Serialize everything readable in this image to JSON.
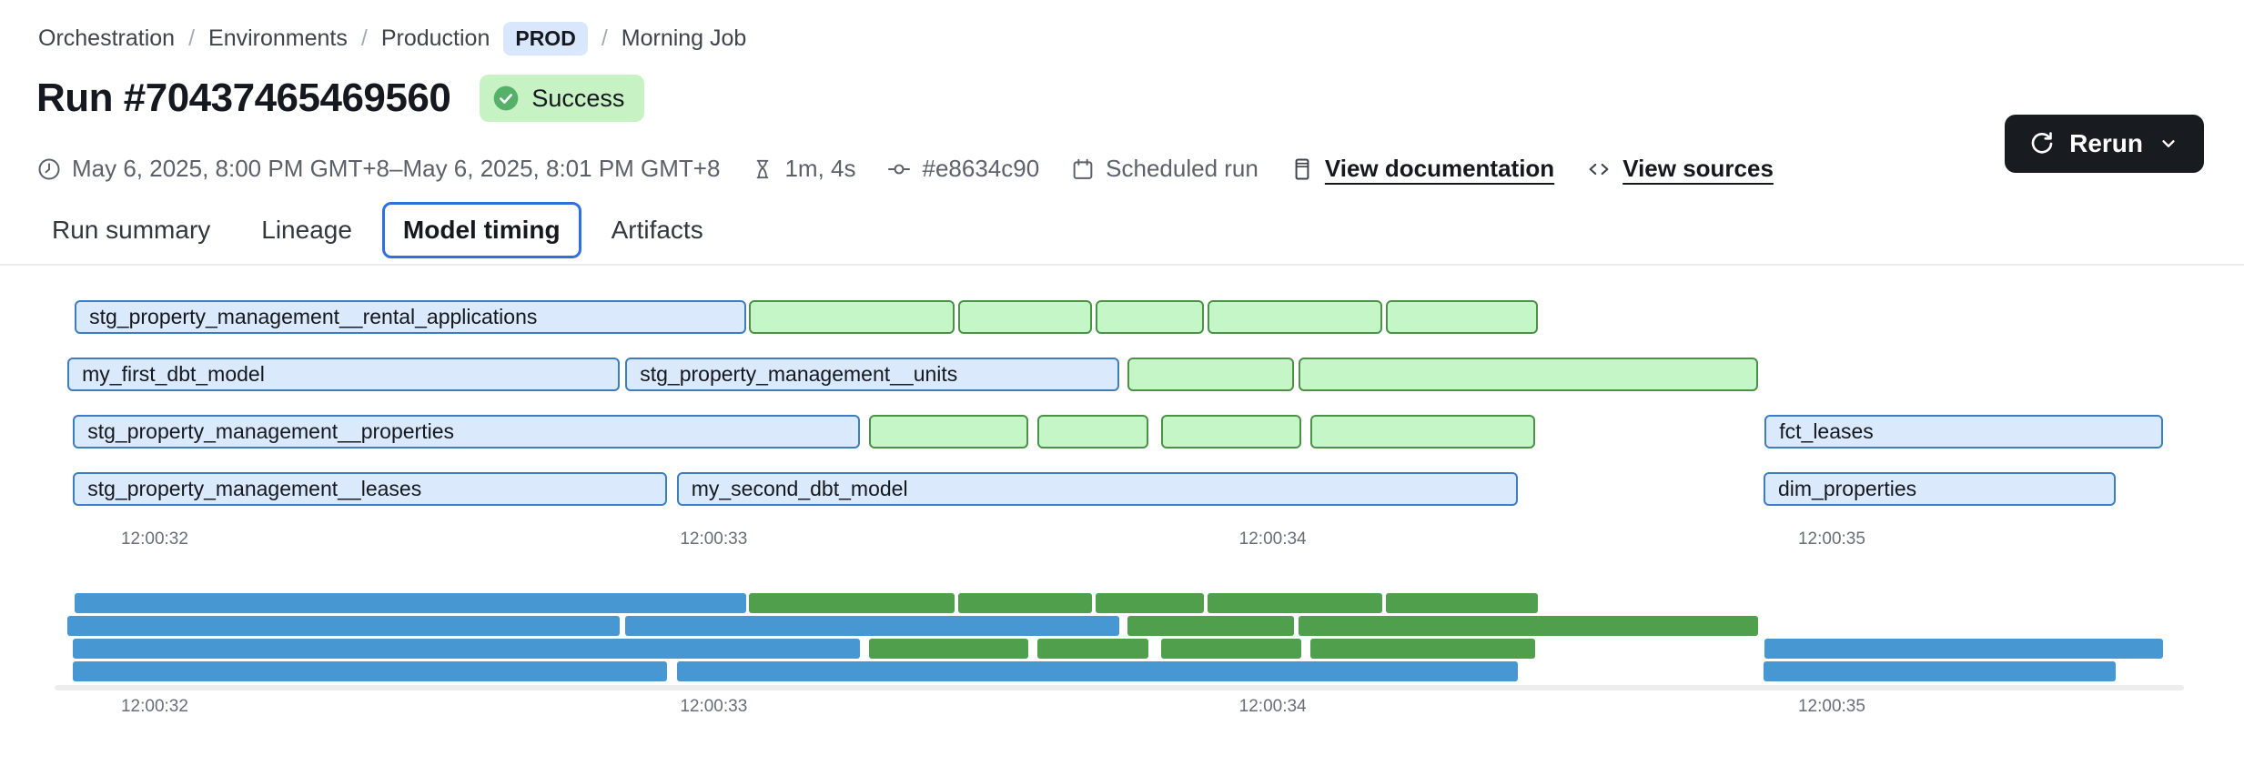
{
  "breadcrumb": {
    "items": [
      "Orchestration",
      "Environments",
      "Production",
      "Morning Job"
    ],
    "env_badge": "PROD"
  },
  "header": {
    "title": "Run #70437465469560",
    "status_badge": "Success",
    "rerun_label": "Rerun"
  },
  "meta": {
    "time_range": "May 6, 2025, 8:00 PM GMT+8–May 6, 2025, 8:01 PM GMT+8",
    "duration": "1m, 4s",
    "commit": "#e8634c90",
    "trigger": "Scheduled run",
    "docs_link": "View documentation",
    "sources_link": "View sources"
  },
  "tabs": [
    {
      "label": "Run summary",
      "active": false
    },
    {
      "label": "Lineage",
      "active": false
    },
    {
      "label": "Model timing",
      "active": true
    },
    {
      "label": "Artifacts",
      "active": false
    }
  ],
  "colors": {
    "prod_badge_bg": "#d9e7fd",
    "success_bg": "#c7f2c3",
    "check_circle": "#55b169",
    "rerun_bg": "#181b20",
    "tab_active_border": "#2f6fde",
    "bar_blue_fill": "#daeafc",
    "bar_blue_border": "#3d7dc1",
    "bar_green_fill": "#c5f6c8",
    "bar_green_border": "#4b9247",
    "mini_blue": "#4697d2",
    "mini_green": "#4f9f4c"
  },
  "chart_data": {
    "type": "gantt",
    "title": "Model timing",
    "legend": "none",
    "x_axis": {
      "min": 31.821,
      "max": 35.63,
      "unit": "seconds after 12:00:00",
      "ticks": [
        {
          "t": 32,
          "label": "12:00:32"
        },
        {
          "t": 33,
          "label": "12:00:33"
        },
        {
          "t": 34,
          "label": "12:00:34"
        },
        {
          "t": 35,
          "label": "12:00:35"
        }
      ]
    },
    "rows": [
      {
        "segments": [
          {
            "label": "stg_property_management__rental_applications",
            "color": "blue",
            "start": 31.857,
            "end": 33.058
          },
          {
            "color": "green",
            "start": 33.063,
            "end": 33.431
          },
          {
            "color": "green",
            "start": 33.437,
            "end": 33.677
          },
          {
            "color": "green",
            "start": 33.683,
            "end": 33.877
          },
          {
            "color": "green",
            "start": 33.883,
            "end": 34.196
          },
          {
            "color": "green",
            "start": 34.202,
            "end": 34.474
          }
        ]
      },
      {
        "segments": [
          {
            "label": "my_first_dbt_model",
            "color": "blue",
            "start": 31.844,
            "end": 32.832
          },
          {
            "label": "stg_property_management__units",
            "color": "blue",
            "start": 32.842,
            "end": 33.726
          },
          {
            "color": "green",
            "start": 33.74,
            "end": 34.038
          },
          {
            "color": "green",
            "start": 34.046,
            "end": 34.868
          }
        ]
      },
      {
        "segments": [
          {
            "label": "stg_property_management__properties",
            "color": "blue",
            "start": 31.854,
            "end": 33.262
          },
          {
            "color": "green",
            "start": 33.278,
            "end": 33.563
          },
          {
            "color": "green",
            "start": 33.579,
            "end": 33.778
          },
          {
            "color": "green",
            "start": 33.8,
            "end": 34.051
          },
          {
            "color": "green",
            "start": 34.067,
            "end": 34.469
          },
          {
            "label": "fct_leases",
            "color": "blue",
            "start": 34.88,
            "end": 35.593
          }
        ]
      },
      {
        "segments": [
          {
            "label": "stg_property_management__leases",
            "color": "blue",
            "start": 31.854,
            "end": 32.917
          },
          {
            "label": "my_second_dbt_model",
            "color": "blue",
            "start": 32.934,
            "end": 34.438
          },
          {
            "label": "dim_properties",
            "color": "blue",
            "start": 34.878,
            "end": 35.508
          }
        ]
      }
    ],
    "minimap": {
      "shown": true,
      "same_rows_as_main": true
    }
  }
}
